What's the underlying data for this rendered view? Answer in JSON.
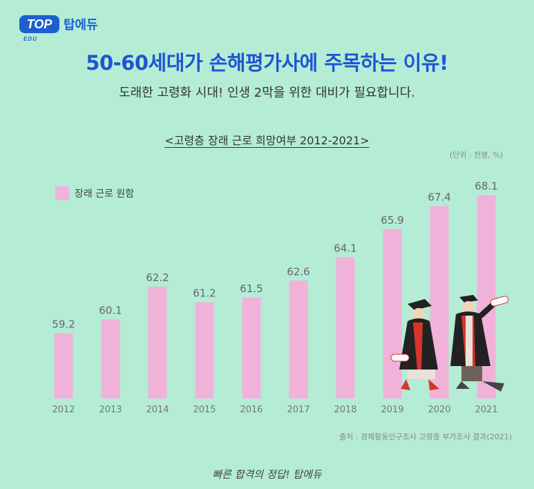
{
  "brand": {
    "badge": "TOP",
    "badge_sub": "EDU",
    "name": "탑에듀"
  },
  "header": {
    "title": "50-60세대가 손해평가사에 주목하는 이유!",
    "subtitle": "도래한 고령화 시대! 인생 2막을 위한 대비가 필요합니다."
  },
  "colors": {
    "background": "#b4ecd6",
    "bar": "#f0b2d8",
    "title": "#1f55d0"
  },
  "chart_data": {
    "type": "bar",
    "title": "<고령층 장래 근로 희망여부 2012-2021>",
    "unit": "(단위 : 천명, %)",
    "categories": [
      "2012",
      "2013",
      "2014",
      "2015",
      "2016",
      "2017",
      "2018",
      "2019",
      "2020",
      "2021"
    ],
    "series": [
      {
        "name": "장래 근로 원함",
        "values": [
          59.2,
          60.1,
          62.2,
          61.2,
          61.5,
          62.6,
          64.1,
          65.9,
          67.4,
          68.1
        ]
      }
    ],
    "ylim": [
      55,
      70
    ],
    "grid": false,
    "legend": "top-left"
  },
  "source": "출처 : 경제활동인구조사 고령층 부가조사 결과(2021)",
  "footer": "빠른 합격의 정답! 탑에듀",
  "illustration": {
    "icon": "graduates-illustration"
  }
}
